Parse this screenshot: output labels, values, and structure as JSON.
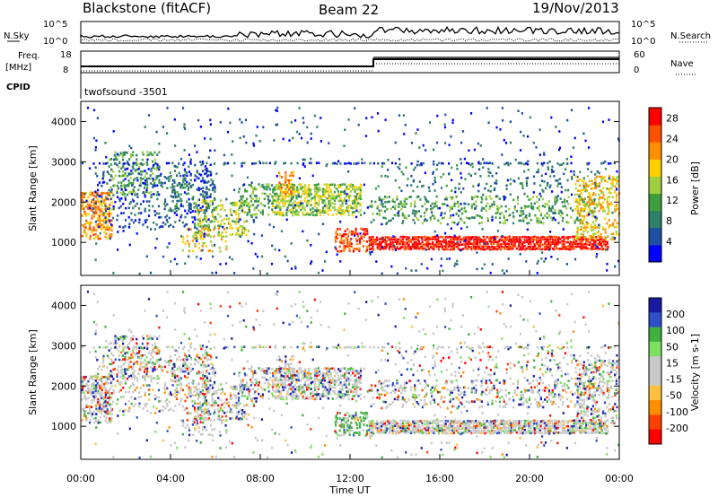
{
  "header": {
    "station": "Blackstone (fitACF)",
    "beam": "Beam 22",
    "date": "19/Nov/2013"
  },
  "panels": {
    "nsky_label": "N.Sky",
    "nsearch_label": "N.Search",
    "freq_label": "Freq.",
    "freq_unit": "[MHz]",
    "nave_label": "Nave",
    "cpid_label": "CPID",
    "cpid_value": "twofsound -3501",
    "noise_ticks_left": [
      "10^5",
      "10^0"
    ],
    "noise_ticks_right": [
      "10^5",
      "10^0"
    ],
    "freq_ticks": [
      "18",
      "8"
    ],
    "nave_ticks": [
      "60",
      "0"
    ]
  },
  "colors": {
    "power_scale": [
      "#0000ff",
      "#1f4fa0",
      "#2f7f6a",
      "#3f9f3f",
      "#9fcf3f",
      "#ffcf00",
      "#ff8f00",
      "#ff4f00",
      "#ff0000"
    ],
    "velocity_scale": [
      "#1a1aa0",
      "#2f4fc8",
      "#3faf3f",
      "#7fdf5f",
      "#c8c8c8",
      "#c8c8c8",
      "#ffbf3f",
      "#ff8f00",
      "#ff3f00",
      "#ff0000"
    ]
  },
  "chart_data": [
    {
      "type": "heatmap",
      "panel": "power",
      "ylabel": "Slant Range [km]",
      "yticks": [
        "4000",
        "3000",
        "2000",
        "1000"
      ],
      "ylim": [
        180,
        4500
      ],
      "colorbar_label": "Power [dB]",
      "colorbar_ticks": [
        "28",
        "24",
        "20",
        "16",
        "12",
        "8",
        "4"
      ],
      "colorbar_range": [
        0,
        30
      ],
      "xlim_hours": [
        0,
        24
      ],
      "x_start_date": "19/Nov/2013 00:00"
    },
    {
      "type": "heatmap",
      "panel": "velocity",
      "ylabel": "Slant Range [km]",
      "yticks": [
        "4000",
        "3000",
        "2000",
        "1000"
      ],
      "ylim": [
        180,
        4500
      ],
      "colorbar_label": "Velocity [m s-1]",
      "colorbar_ticks": [
        "200",
        "100",
        "50",
        "15",
        "-15",
        "-50",
        "-100",
        "-200"
      ],
      "xlabel": "Time UT",
      "xticks": [
        "00:00",
        "04:00",
        "08:00",
        "12:00",
        "16:00",
        "20:00",
        "00:00"
      ],
      "xlim_hours": [
        0,
        24
      ]
    }
  ]
}
